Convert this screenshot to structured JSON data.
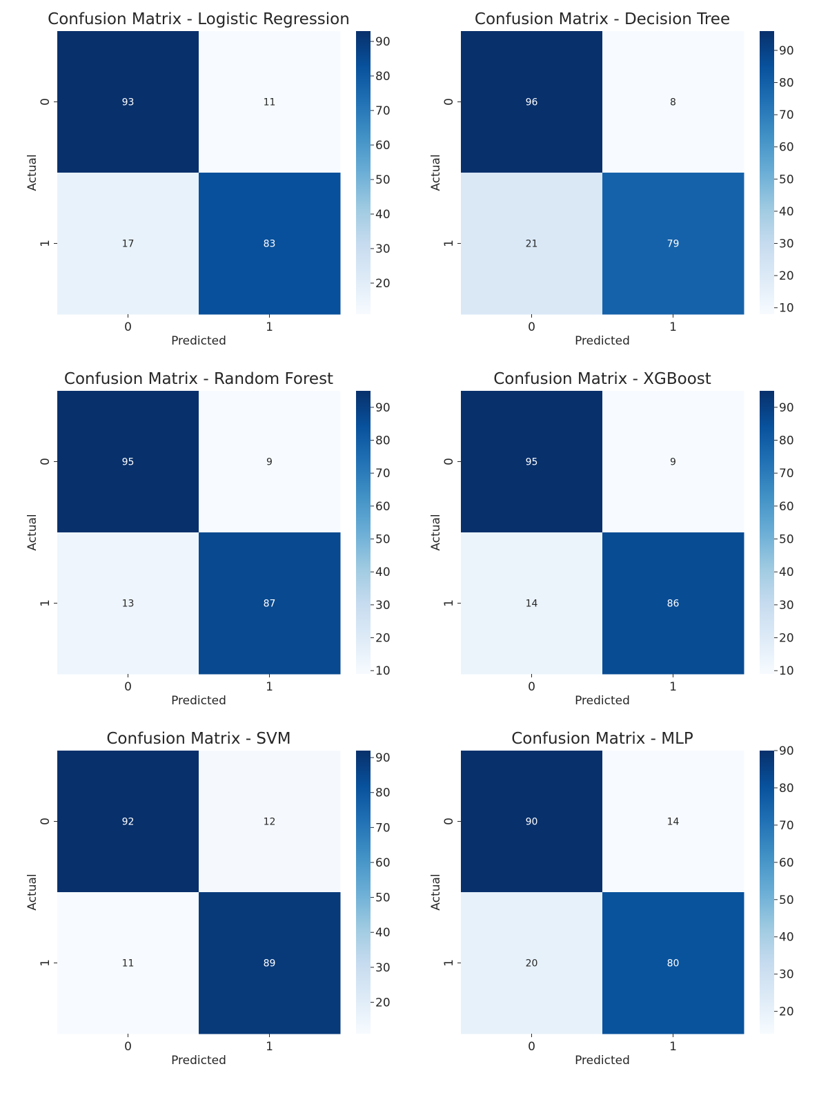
{
  "chart_data": [
    {
      "type": "heatmap",
      "title": "Confusion Matrix - Logistic Regression",
      "xlabel": "Predicted",
      "ylabel": "Actual",
      "x_categories": [
        "0",
        "1"
      ],
      "y_categories": [
        "0",
        "1"
      ],
      "values": [
        [
          93,
          11
        ],
        [
          17,
          83
        ]
      ],
      "colormap": "Blues",
      "colorbar": {
        "range": [
          11,
          93
        ],
        "ticks": [
          20,
          30,
          40,
          50,
          60,
          70,
          80,
          90
        ]
      }
    },
    {
      "type": "heatmap",
      "title": "Confusion Matrix - Decision Tree",
      "xlabel": "Predicted",
      "ylabel": "Actual",
      "x_categories": [
        "0",
        "1"
      ],
      "y_categories": [
        "0",
        "1"
      ],
      "values": [
        [
          96,
          8
        ],
        [
          21,
          79
        ]
      ],
      "colormap": "Blues",
      "colorbar": {
        "range": [
          8,
          96
        ],
        "ticks": [
          10,
          20,
          30,
          40,
          50,
          60,
          70,
          80,
          90
        ]
      }
    },
    {
      "type": "heatmap",
      "title": "Confusion Matrix - Random Forest",
      "xlabel": "Predicted",
      "ylabel": "Actual",
      "x_categories": [
        "0",
        "1"
      ],
      "y_categories": [
        "0",
        "1"
      ],
      "values": [
        [
          95,
          9
        ],
        [
          13,
          87
        ]
      ],
      "colormap": "Blues",
      "colorbar": {
        "range": [
          9,
          95
        ],
        "ticks": [
          10,
          20,
          30,
          40,
          50,
          60,
          70,
          80,
          90
        ]
      }
    },
    {
      "type": "heatmap",
      "title": "Confusion Matrix - XGBoost",
      "xlabel": "Predicted",
      "ylabel": "Actual",
      "x_categories": [
        "0",
        "1"
      ],
      "y_categories": [
        "0",
        "1"
      ],
      "values": [
        [
          95,
          9
        ],
        [
          14,
          86
        ]
      ],
      "colormap": "Blues",
      "colorbar": {
        "range": [
          9,
          95
        ],
        "ticks": [
          10,
          20,
          30,
          40,
          50,
          60,
          70,
          80,
          90
        ]
      }
    },
    {
      "type": "heatmap",
      "title": "Confusion Matrix - SVM",
      "xlabel": "Predicted",
      "ylabel": "Actual",
      "x_categories": [
        "0",
        "1"
      ],
      "y_categories": [
        "0",
        "1"
      ],
      "values": [
        [
          92,
          12
        ],
        [
          11,
          89
        ]
      ],
      "colormap": "Blues",
      "colorbar": {
        "range": [
          11,
          92
        ],
        "ticks": [
          20,
          30,
          40,
          50,
          60,
          70,
          80,
          90
        ]
      }
    },
    {
      "type": "heatmap",
      "title": "Confusion Matrix - MLP",
      "xlabel": "Predicted",
      "ylabel": "Actual",
      "x_categories": [
        "0",
        "1"
      ],
      "y_categories": [
        "0",
        "1"
      ],
      "values": [
        [
          90,
          14
        ],
        [
          20,
          80
        ]
      ],
      "colormap": "Blues",
      "colorbar": {
        "range": [
          14,
          90
        ],
        "ticks": [
          20,
          30,
          40,
          50,
          60,
          70,
          80,
          90
        ]
      }
    }
  ]
}
